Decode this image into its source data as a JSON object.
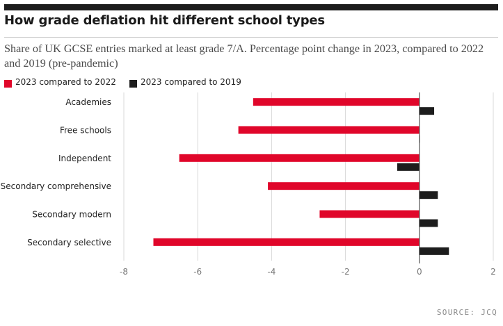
{
  "header": {
    "title": "How grade deflation hit different school types",
    "subtitle": "Share of UK GCSE entries marked at least grade 7/A. Percentage point change in 2023, compared to 2022 and 2019 (pre-pandemic)"
  },
  "footer": {
    "source": "SOURCE: JCQ"
  },
  "colors": {
    "series_2022": "#e0062a",
    "series_2019": "#1d1d1d",
    "grid": "#d9d9d9",
    "zero_line": "#333333"
  },
  "chart_data": {
    "type": "bar",
    "orientation": "horizontal",
    "categories": [
      "Academies",
      "Free schools",
      "Independent",
      "Secondary comprehensive",
      "Secondary modern",
      "Secondary selective"
    ],
    "series": [
      {
        "name": "2023 compared to 2022",
        "values": [
          -4.5,
          -4.9,
          -6.5,
          -4.1,
          -2.7,
          -7.2
        ]
      },
      {
        "name": "2023 compared to 2019",
        "values": [
          0.4,
          0.0,
          -0.6,
          0.5,
          0.5,
          0.8
        ]
      }
    ],
    "xlim": [
      -8,
      2
    ],
    "xticks": [
      "-8",
      "-6",
      "-4",
      "-2",
      "0",
      "2"
    ],
    "grid": true,
    "legend_position": "top-left"
  }
}
